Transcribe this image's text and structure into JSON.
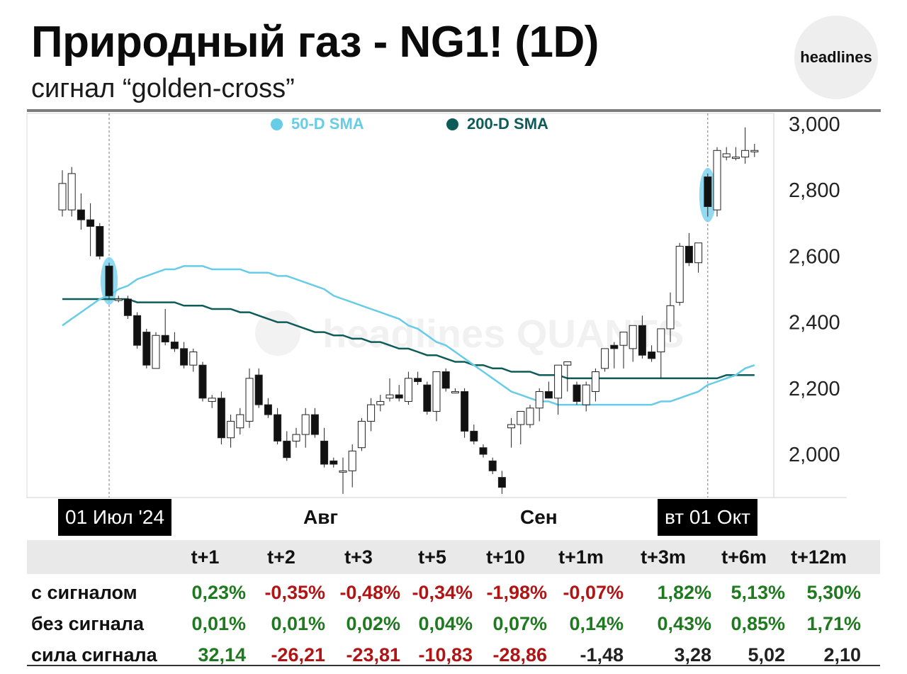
{
  "header": {
    "title": "Природный газ - NG1! (1D)",
    "subtitle": "сигнал “golden-cross”",
    "logo": "headlines",
    "watermark": "headlines QUANTS"
  },
  "colors": {
    "sma50": "#66cce8",
    "sma200": "#0d5c5a",
    "positive": "#1f7a1f",
    "negative": "#b01414",
    "neutral": "#222222",
    "highlight": "#7fd3ef"
  },
  "legend": {
    "sma50_label": "50-D SMA",
    "sma200_label": "200-D SMA"
  },
  "x_labels": {
    "start": "01 Июл '24",
    "aug": "Авг",
    "sep": "Сен",
    "end": "вт 01 Окт"
  },
  "chart_data": {
    "type": "candlestick",
    "y_ticks": [
      "3,000",
      "2,800",
      "2,600",
      "2,400",
      "2,200",
      "2,000"
    ],
    "ylim": [
      1.87,
      3.02
    ],
    "y_tick_values": [
      3.0,
      2.8,
      2.6,
      2.4,
      2.2,
      2.0
    ],
    "x_month_ticks": [
      "01 Июл '24",
      "Авг",
      "Сен",
      "вт 01 Окт"
    ],
    "signal_days": [
      5,
      69
    ],
    "candles": [
      {
        "o": 2.74,
        "h": 2.86,
        "l": 2.72,
        "c": 2.82
      },
      {
        "o": 2.74,
        "h": 2.87,
        "l": 2.72,
        "c": 2.85
      },
      {
        "o": 2.74,
        "h": 2.79,
        "l": 2.68,
        "c": 2.71
      },
      {
        "o": 2.71,
        "h": 2.76,
        "l": 2.6,
        "c": 2.69
      },
      {
        "o": 2.69,
        "h": 2.7,
        "l": 2.59,
        "c": 2.6
      },
      {
        "o": 2.57,
        "h": 2.58,
        "l": 2.47,
        "c": 2.48
      },
      {
        "o": 2.47,
        "h": 2.48,
        "l": 2.46,
        "c": 2.47
      },
      {
        "o": 2.47,
        "h": 2.48,
        "l": 2.41,
        "c": 2.42
      },
      {
        "o": 2.42,
        "h": 2.43,
        "l": 2.32,
        "c": 2.33
      },
      {
        "o": 2.37,
        "h": 2.38,
        "l": 2.26,
        "c": 2.27
      },
      {
        "o": 2.26,
        "h": 2.37,
        "l": 2.26,
        "c": 2.36
      },
      {
        "o": 2.36,
        "h": 2.44,
        "l": 2.33,
        "c": 2.34
      },
      {
        "o": 2.34,
        "h": 2.37,
        "l": 2.31,
        "c": 2.32
      },
      {
        "o": 2.32,
        "h": 2.34,
        "l": 2.26,
        "c": 2.27
      },
      {
        "o": 2.27,
        "h": 2.32,
        "l": 2.25,
        "c": 2.31
      },
      {
        "o": 2.27,
        "h": 2.28,
        "l": 2.16,
        "c": 2.17
      },
      {
        "o": 2.16,
        "h": 2.18,
        "l": 2.14,
        "c": 2.17
      },
      {
        "o": 2.17,
        "h": 2.19,
        "l": 2.03,
        "c": 2.05
      },
      {
        "o": 2.05,
        "h": 2.12,
        "l": 2.02,
        "c": 2.1
      },
      {
        "o": 2.08,
        "h": 2.14,
        "l": 2.06,
        "c": 2.12
      },
      {
        "o": 2.1,
        "h": 2.26,
        "l": 2.08,
        "c": 2.23
      },
      {
        "o": 2.24,
        "h": 2.26,
        "l": 2.14,
        "c": 2.15
      },
      {
        "o": 2.15,
        "h": 2.17,
        "l": 2.11,
        "c": 2.12
      },
      {
        "o": 2.12,
        "h": 2.14,
        "l": 2.03,
        "c": 2.04
      },
      {
        "o": 2.04,
        "h": 2.07,
        "l": 1.98,
        "c": 1.99
      },
      {
        "o": 2.04,
        "h": 2.08,
        "l": 2.02,
        "c": 2.06
      },
      {
        "o": 2.06,
        "h": 2.14,
        "l": 2.02,
        "c": 2.12
      },
      {
        "o": 2.12,
        "h": 2.14,
        "l": 2.05,
        "c": 2.06
      },
      {
        "o": 2.04,
        "h": 2.08,
        "l": 1.96,
        "c": 1.97
      },
      {
        "o": 1.98,
        "h": 1.99,
        "l": 1.96,
        "c": 1.97
      },
      {
        "o": 1.95,
        "h": 1.99,
        "l": 1.88,
        "c": 1.95
      },
      {
        "o": 1.95,
        "h": 2.03,
        "l": 1.9,
        "c": 2.01
      },
      {
        "o": 2.02,
        "h": 2.11,
        "l": 2.01,
        "c": 2.1
      },
      {
        "o": 2.1,
        "h": 2.17,
        "l": 2.07,
        "c": 2.15
      },
      {
        "o": 2.15,
        "h": 2.18,
        "l": 2.13,
        "c": 2.16
      },
      {
        "o": 2.17,
        "h": 2.23,
        "l": 2.16,
        "c": 2.18
      },
      {
        "o": 2.18,
        "h": 2.21,
        "l": 2.16,
        "c": 2.17
      },
      {
        "o": 2.16,
        "h": 2.25,
        "l": 2.15,
        "c": 2.23
      },
      {
        "o": 2.23,
        "h": 2.25,
        "l": 2.21,
        "c": 2.22
      },
      {
        "o": 2.21,
        "h": 2.22,
        "l": 2.12,
        "c": 2.13
      },
      {
        "o": 2.13,
        "h": 2.25,
        "l": 2.1,
        "c": 2.25
      },
      {
        "o": 2.25,
        "h": 2.26,
        "l": 2.19,
        "c": 2.2
      },
      {
        "o": 2.19,
        "h": 2.2,
        "l": 2.19,
        "c": 2.19
      },
      {
        "o": 2.19,
        "h": 2.2,
        "l": 2.05,
        "c": 2.07
      },
      {
        "o": 2.07,
        "h": 2.09,
        "l": 2.03,
        "c": 2.04
      },
      {
        "o": 2.02,
        "h": 2.03,
        "l": 1.99,
        "c": 2.0
      },
      {
        "o": 1.98,
        "h": 1.99,
        "l": 1.94,
        "c": 1.95
      },
      {
        "o": 1.93,
        "h": 1.95,
        "l": 1.88,
        "c": 1.9
      },
      {
        "o": 2.08,
        "h": 2.11,
        "l": 2.02,
        "c": 2.09
      },
      {
        "o": 2.09,
        "h": 2.13,
        "l": 2.03,
        "c": 2.13
      },
      {
        "o": 2.09,
        "h": 2.15,
        "l": 2.08,
        "c": 2.14
      },
      {
        "o": 2.14,
        "h": 2.2,
        "l": 2.1,
        "c": 2.19
      },
      {
        "o": 2.19,
        "h": 2.22,
        "l": 2.17,
        "c": 2.17
      },
      {
        "o": 2.17,
        "h": 2.26,
        "l": 2.12,
        "c": 2.27
      },
      {
        "o": 2.27,
        "h": 2.28,
        "l": 2.19,
        "c": 2.28
      },
      {
        "o": 2.21,
        "h": 2.22,
        "l": 2.15,
        "c": 2.16
      },
      {
        "o": 2.15,
        "h": 2.22,
        "l": 2.13,
        "c": 2.21
      },
      {
        "o": 2.19,
        "h": 2.26,
        "l": 2.16,
        "c": 2.25
      },
      {
        "o": 2.26,
        "h": 2.32,
        "l": 2.25,
        "c": 2.32
      },
      {
        "o": 2.33,
        "h": 2.34,
        "l": 2.26,
        "c": 2.32
      },
      {
        "o": 2.33,
        "h": 2.37,
        "l": 2.26,
        "c": 2.37
      },
      {
        "o": 2.32,
        "h": 2.39,
        "l": 2.28,
        "c": 2.39
      },
      {
        "o": 2.39,
        "h": 2.42,
        "l": 2.29,
        "c": 2.3
      },
      {
        "o": 2.31,
        "h": 2.33,
        "l": 2.28,
        "c": 2.29
      },
      {
        "o": 2.31,
        "h": 2.38,
        "l": 2.23,
        "c": 2.38
      },
      {
        "o": 2.38,
        "h": 2.49,
        "l": 2.34,
        "c": 2.45
      },
      {
        "o": 2.46,
        "h": 2.64,
        "l": 2.45,
        "c": 2.63
      },
      {
        "o": 2.63,
        "h": 2.67,
        "l": 2.57,
        "c": 2.58
      },
      {
        "o": 2.58,
        "h": 2.64,
        "l": 2.55,
        "c": 2.64
      },
      {
        "o": 2.84,
        "h": 2.85,
        "l": 2.72,
        "c": 2.75
      },
      {
        "o": 2.74,
        "h": 2.93,
        "l": 2.72,
        "c": 2.92
      },
      {
        "o": 2.9,
        "h": 2.93,
        "l": 2.89,
        "c": 2.91
      },
      {
        "o": 2.9,
        "h": 2.93,
        "l": 2.89,
        "c": 2.9
      },
      {
        "o": 2.9,
        "h": 2.99,
        "l": 2.88,
        "c": 2.92
      },
      {
        "o": 2.92,
        "h": 2.94,
        "l": 2.9,
        "c": 2.92
      }
    ],
    "sma50": [
      2.39,
      2.41,
      2.43,
      2.45,
      2.47,
      2.48,
      2.5,
      2.51,
      2.53,
      2.54,
      2.55,
      2.56,
      2.56,
      2.57,
      2.57,
      2.57,
      2.56,
      2.56,
      2.56,
      2.56,
      2.55,
      2.55,
      2.55,
      2.54,
      2.54,
      2.53,
      2.52,
      2.51,
      2.5,
      2.48,
      2.47,
      2.46,
      2.45,
      2.44,
      2.43,
      2.42,
      2.41,
      2.39,
      2.38,
      2.36,
      2.34,
      2.33,
      2.31,
      2.29,
      2.27,
      2.25,
      2.23,
      2.21,
      2.19,
      2.18,
      2.17,
      2.16,
      2.16,
      2.15,
      2.15,
      2.15,
      2.15,
      2.15,
      2.15,
      2.15,
      2.15,
      2.15,
      2.15,
      2.15,
      2.16,
      2.16,
      2.17,
      2.18,
      2.19,
      2.21,
      2.22,
      2.23,
      2.24,
      2.26,
      2.27
    ],
    "sma200": [
      2.47,
      2.47,
      2.47,
      2.47,
      2.47,
      2.47,
      2.47,
      2.47,
      2.46,
      2.46,
      2.46,
      2.46,
      2.46,
      2.45,
      2.45,
      2.45,
      2.44,
      2.44,
      2.44,
      2.43,
      2.43,
      2.42,
      2.41,
      2.4,
      2.4,
      2.39,
      2.38,
      2.37,
      2.37,
      2.36,
      2.36,
      2.35,
      2.35,
      2.34,
      2.34,
      2.33,
      2.32,
      2.32,
      2.31,
      2.3,
      2.3,
      2.29,
      2.28,
      2.28,
      2.27,
      2.27,
      2.26,
      2.26,
      2.25,
      2.25,
      2.25,
      2.24,
      2.24,
      2.24,
      2.23,
      2.23,
      2.23,
      2.23,
      2.23,
      2.23,
      2.23,
      2.23,
      2.23,
      2.23,
      2.23,
      2.23,
      2.23,
      2.23,
      2.23,
      2.23,
      2.23,
      2.24,
      2.24,
      2.24,
      2.24
    ]
  },
  "table": {
    "columns": [
      "t+1",
      "t+2",
      "t+3",
      "t+5",
      "t+10",
      "t+1m",
      "t+3m",
      "t+6m",
      "t+12m"
    ],
    "rows": [
      {
        "label": "с сигналом",
        "values": [
          "0,23%",
          "-0,35%",
          "-0,48%",
          "-0,34%",
          "-1,98%",
          "-0,07%",
          "1,82%",
          "5,13%",
          "5,30%"
        ],
        "tones": [
          "pos",
          "neg",
          "neg",
          "neg",
          "neg",
          "neg",
          "pos",
          "pos",
          "pos"
        ]
      },
      {
        "label": "без сигнала",
        "values": [
          "0,01%",
          "0,01%",
          "0,02%",
          "0,04%",
          "0,07%",
          "0,14%",
          "0,43%",
          "0,85%",
          "1,71%"
        ],
        "tones": [
          "pos",
          "pos",
          "pos",
          "pos",
          "pos",
          "pos",
          "pos",
          "pos",
          "pos"
        ]
      },
      {
        "label": "сила сигнала",
        "values": [
          "32,14",
          "-26,21",
          "-23,81",
          "-10,83",
          "-28,86",
          "-1,48",
          "3,28",
          "5,02",
          "2,10"
        ],
        "tones": [
          "pos",
          "neg",
          "neg",
          "neg",
          "neg",
          "neu",
          "neu",
          "neu",
          "neu"
        ]
      }
    ]
  }
}
